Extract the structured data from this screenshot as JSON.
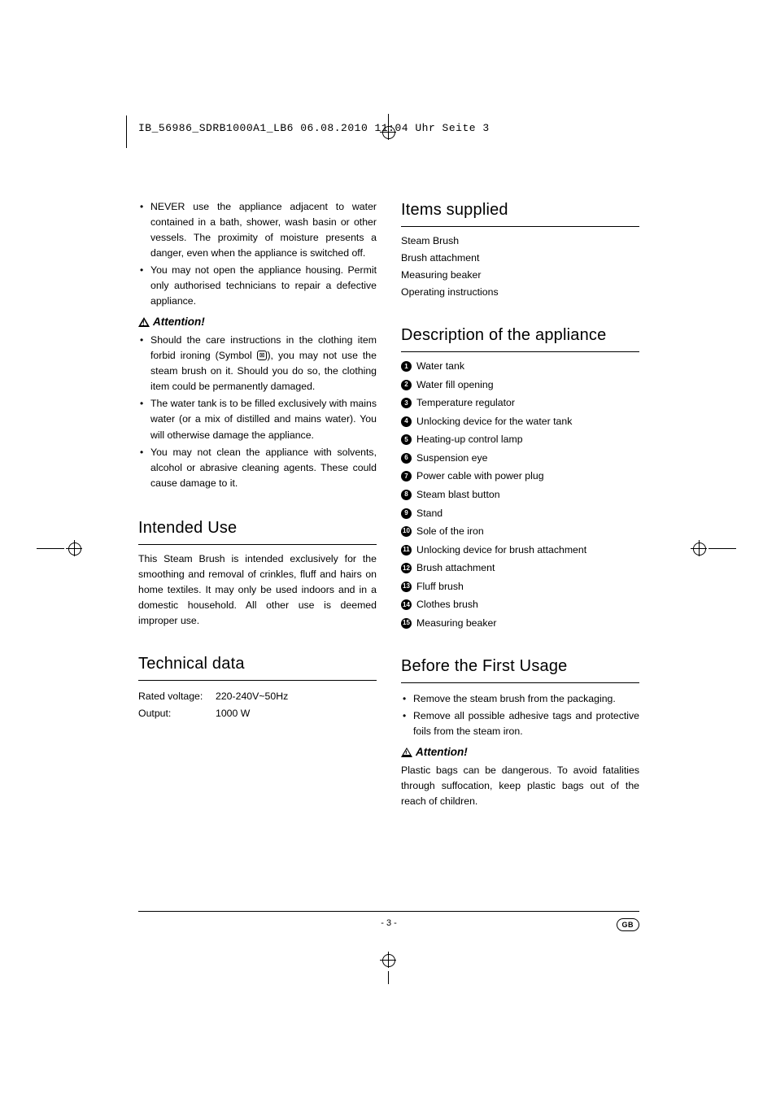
{
  "header": "IB_56986_SDRB1000A1_LB6  06.08.2010  11:04 Uhr  Seite 3",
  "left": {
    "warnings": [
      "NEVER use the appliance adjacent to water contained in a bath, shower, wash basin or other vessels. The proximity of moisture presents a danger, even when the appliance is switched off.",
      "You may not open the appliance housing. Permit only authorised technicians to repair a defective appliance."
    ],
    "attention_label": "Attention!",
    "attention_bullets": [
      "Should the care instructions in the clothing item forbid ironing (Symbol ⧉), you may not use the steam brush on it. Should you do so, the clothing item could be permanently damaged.",
      "The water tank is to be filled exclusively with mains water (or a mix of distilled and mains water). You will otherwise damage the appliance.",
      "You may not clean the appliance with solvents, alcohol or abrasive cleaning agents. These could cause damage to it."
    ],
    "intended_title": "Intended Use",
    "intended_text": "This Steam Brush is intended exclusively for the smoothing and removal of crinkles, fluff and hairs on home textiles. It may only be used indoors and in a domestic household. All other use is deemed improper use.",
    "tech_title": "Technical data",
    "tech": {
      "voltage_label": "Rated voltage:",
      "voltage_value": "220-240V~50Hz",
      "output_label": "Output:",
      "output_value": "1000 W"
    }
  },
  "right": {
    "items_title": "Items supplied",
    "items_list": [
      "Steam Brush",
      "Brush attachment",
      "Measuring beaker",
      "Operating instructions"
    ],
    "desc_title": "Description of the appliance",
    "desc_items": [
      "Water tank",
      "Water fill opening",
      "Temperature regulator",
      "Unlocking device for the water tank",
      "Heating-up control lamp",
      "Suspension eye",
      "Power cable with power plug",
      "Steam blast button",
      "Stand",
      "Sole of the iron",
      "Unlocking device for brush attachment",
      "Brush attachment",
      "Fluff brush",
      "Clothes brush",
      "Measuring beaker"
    ],
    "before_title": "Before the First Usage",
    "before_bullets": [
      "Remove the steam brush from the packaging.",
      "Remove all possible adhesive tags and protective foils from the steam iron."
    ],
    "attention_label": "Attention!",
    "attention_text": "Plastic bags can be dangerous. To avoid fatalities through suffocation, keep plastic bags out of the reach of children."
  },
  "footer": {
    "page": "- 3 -",
    "lang": "GB"
  }
}
